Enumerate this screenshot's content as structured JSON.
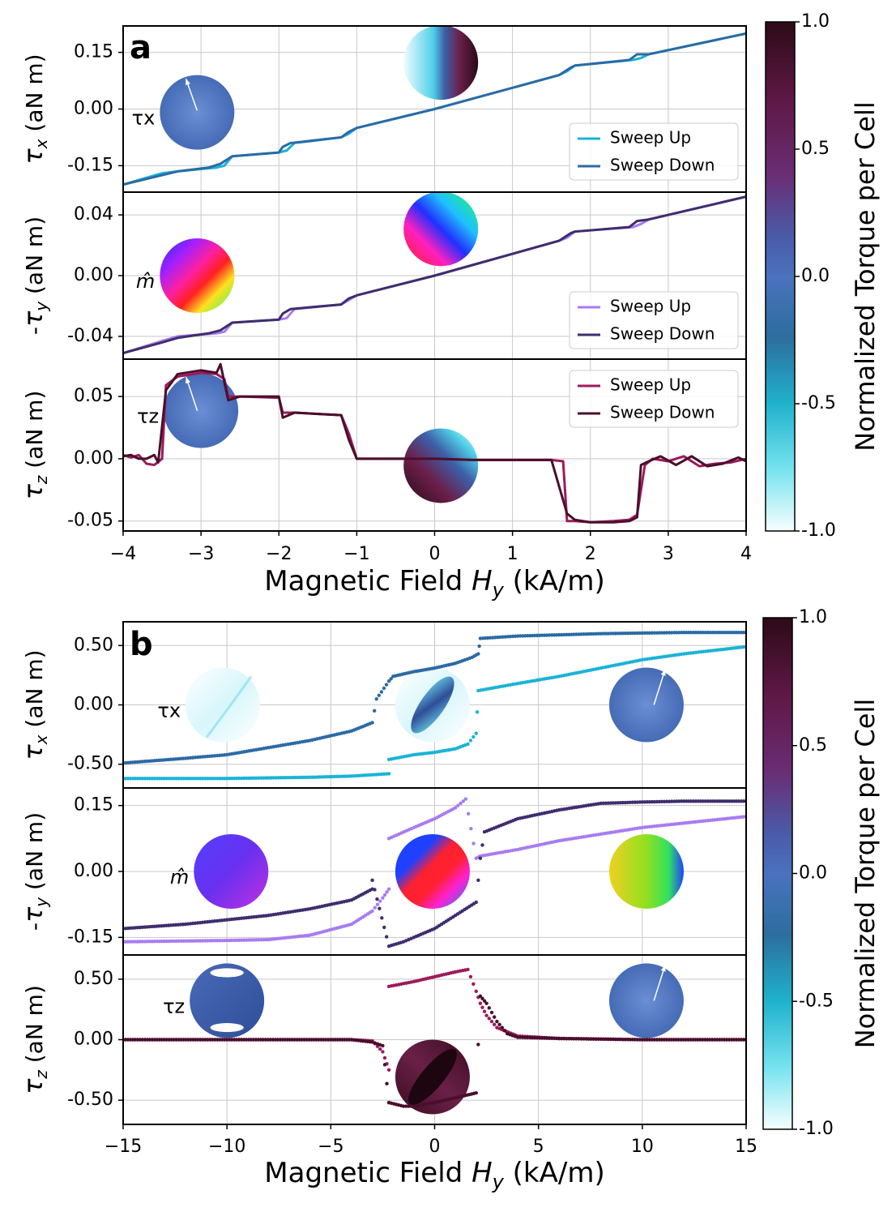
{
  "chart_data": [
    {
      "panel": "a",
      "type": "line",
      "xlabel_prefix": "Magnetic Field ",
      "xlabel_var": "H",
      "xlabel_sub": "y",
      "xlabel_unit": " (kA/m)",
      "xlim": [
        -4,
        4
      ],
      "xticks": [
        -4,
        -3,
        -2,
        -1,
        0,
        1,
        2,
        3,
        4
      ],
      "xtick_labels": [
        "−4",
        "−3",
        "−2",
        "−1",
        "0",
        "1",
        "2",
        "3",
        "4"
      ],
      "colorbar": {
        "label": "Normalized Torque per Cell",
        "ticks": [
          "1.0",
          "0.5",
          "0.0",
          "-0.5",
          "-1.0"
        ]
      },
      "subplots": [
        {
          "id": "tx",
          "ylabel_prefix": "",
          "ylabel_sym": "τ",
          "ylabel_sub": "x",
          "ylabel_unit": " (aN m)",
          "ylim": [
            -0.22,
            0.22
          ],
          "yticks": [
            0.15,
            0.0,
            -0.15
          ],
          "ytick_labels": [
            "0.15",
            "0.00",
            "-0.15"
          ],
          "inset_label": "τx",
          "series": [
            {
              "name": "Sweep Up",
              "color": "#1ab3d6",
              "x": [
                -4.0,
                -3.5,
                -3.3,
                -2.8,
                -2.7,
                -2.6,
                -2.0,
                -1.9,
                -1.8,
                -1.2,
                -1.1,
                -1.0,
                0.0,
                1.6,
                1.7,
                1.8,
                2.55,
                2.65,
                2.75,
                4.0
              ],
              "y": [
                -0.2,
                -0.17,
                -0.165,
                -0.155,
                -0.15,
                -0.125,
                -0.115,
                -0.11,
                -0.09,
                -0.075,
                -0.065,
                -0.05,
                0.0,
                0.09,
                0.1,
                0.115,
                0.13,
                0.135,
                0.145,
                0.2
              ]
            },
            {
              "name": "Sweep Down",
              "color": "#2b6aa5",
              "x": [
                -4.0,
                -3.5,
                -3.3,
                -2.9,
                -2.75,
                -2.6,
                -2.0,
                -1.95,
                -1.85,
                -1.2,
                -1.1,
                -1.0,
                0.0,
                1.6,
                1.75,
                1.8,
                2.5,
                2.6,
                2.75,
                4.0
              ],
              "y": [
                -0.2,
                -0.175,
                -0.165,
                -0.155,
                -0.145,
                -0.125,
                -0.115,
                -0.1,
                -0.09,
                -0.075,
                -0.06,
                -0.05,
                0.0,
                0.09,
                0.11,
                0.115,
                0.13,
                0.145,
                0.145,
                0.2
              ]
            }
          ]
        },
        {
          "id": "ty",
          "ylabel_prefix": "-",
          "ylabel_sym": "τ",
          "ylabel_sub": "y",
          "ylabel_unit": " (aN m)",
          "ylim": [
            -0.055,
            0.055
          ],
          "yticks": [
            0.04,
            0.0,
            -0.04
          ],
          "ytick_labels": [
            "0.04",
            "0.00",
            "-0.04"
          ],
          "inset_label": "m̂",
          "series": [
            {
              "name": "Sweep Up",
              "color": "#a77cf0",
              "x": [
                -4.0,
                -3.5,
                -3.3,
                -2.8,
                -2.7,
                -2.6,
                -2.0,
                -1.9,
                -1.8,
                -1.2,
                -1.1,
                -1.0,
                0.0,
                1.6,
                1.7,
                1.8,
                2.55,
                2.65,
                2.75,
                4.0
              ],
              "y": [
                -0.051,
                -0.043,
                -0.04,
                -0.038,
                -0.037,
                -0.031,
                -0.029,
                -0.028,
                -0.022,
                -0.019,
                -0.016,
                -0.013,
                0.0,
                0.023,
                0.025,
                0.029,
                0.032,
                0.034,
                0.037,
                0.052
              ]
            },
            {
              "name": "Sweep Down",
              "color": "#3f2d6e",
              "x": [
                -4.0,
                -3.5,
                -3.3,
                -2.9,
                -2.75,
                -2.6,
                -2.0,
                -1.95,
                -1.85,
                -1.2,
                -1.1,
                -1.0,
                0.0,
                1.6,
                1.75,
                1.8,
                2.5,
                2.6,
                2.75,
                4.0
              ],
              "y": [
                -0.051,
                -0.044,
                -0.041,
                -0.038,
                -0.036,
                -0.031,
                -0.029,
                -0.025,
                -0.022,
                -0.019,
                -0.015,
                -0.013,
                0.0,
                0.023,
                0.028,
                0.029,
                0.032,
                0.036,
                0.037,
                0.052
              ]
            }
          ]
        },
        {
          "id": "tz",
          "ylabel_prefix": "",
          "ylabel_sym": "τ",
          "ylabel_sub": "z",
          "ylabel_unit": " (aN m)",
          "ylim": [
            -0.058,
            0.08
          ],
          "yticks": [
            0.05,
            0.0,
            -0.05
          ],
          "ytick_labels": [
            "0.05",
            "0.00",
            "-0.05"
          ],
          "inset_label": "τz",
          "series": [
            {
              "name": "Sweep Up",
              "color": "#9c1b5a",
              "x": [
                -4.0,
                -3.9,
                -3.8,
                -3.7,
                -3.6,
                -3.5,
                -3.45,
                -3.3,
                -3.0,
                -2.8,
                -2.7,
                -2.65,
                -2.5,
                -2.0,
                -1.95,
                -1.8,
                -1.2,
                -1.1,
                -1.0,
                -0.5,
                0.0,
                0.5,
                1.0,
                1.5,
                1.65,
                1.7,
                1.8,
                2.0,
                2.3,
                2.5,
                2.6,
                2.7,
                2.8,
                3.0,
                3.2,
                3.4,
                3.6,
                3.8,
                4.0
              ],
              "y": [
                0.003,
                0.001,
                0.003,
                -0.004,
                -0.005,
                0.0,
                0.059,
                0.066,
                0.069,
                0.068,
                0.064,
                0.05,
                0.05,
                0.049,
                0.037,
                0.037,
                0.035,
                0.02,
                0.0,
                0.0,
                0.0,
                -0.001,
                -0.001,
                -0.001,
                -0.002,
                -0.05,
                -0.05,
                -0.051,
                -0.05,
                -0.049,
                -0.045,
                -0.005,
                0.0,
                -0.002,
                0.002,
                -0.006,
                -0.004,
                -0.003,
                0.0
              ]
            },
            {
              "name": "Sweep Down",
              "color": "#4a0f2c",
              "x": [
                -4.0,
                -3.9,
                -3.8,
                -3.7,
                -3.6,
                -3.55,
                -3.45,
                -3.3,
                -3.0,
                -2.8,
                -2.75,
                -2.65,
                -2.5,
                -2.0,
                -1.95,
                -1.8,
                -1.2,
                -1.1,
                -1.0,
                -0.5,
                0.0,
                0.5,
                1.0,
                1.5,
                1.7,
                1.8,
                2.0,
                2.3,
                2.5,
                2.6,
                2.65,
                2.75,
                2.9,
                3.1,
                3.3,
                3.5,
                3.7,
                3.9,
                4.0
              ],
              "y": [
                0.002,
                0.003,
                0.0,
                0.0,
                0.003,
                -0.003,
                0.055,
                0.068,
                0.071,
                0.069,
                0.076,
                0.047,
                0.05,
                0.05,
                0.033,
                0.037,
                0.035,
                0.015,
                0.0,
                0.0,
                0.0,
                -0.001,
                -0.001,
                -0.001,
                -0.044,
                -0.049,
                -0.051,
                -0.051,
                -0.05,
                -0.047,
                -0.005,
                -0.002,
                0.002,
                -0.005,
                0.002,
                -0.006,
                -0.004,
                0.001,
                -0.002
              ]
            }
          ]
        }
      ]
    },
    {
      "panel": "b",
      "type": "scatter",
      "xlabel_prefix": "Magnetic Field ",
      "xlabel_var": "H",
      "xlabel_sub": "y",
      "xlabel_unit": " (kA/m)",
      "xlim": [
        -15,
        15
      ],
      "xticks": [
        -15,
        -10,
        -5,
        0,
        5,
        10,
        15
      ],
      "xtick_labels": [
        "−15",
        "−10",
        "−5",
        "0",
        "5",
        "10",
        "15"
      ],
      "colorbar": {
        "label": "Normalized Torque per Cell",
        "ticks": [
          "1.0",
          "0.5",
          "0.0",
          "-0.5",
          "-1.0"
        ]
      },
      "subplots": [
        {
          "id": "tx",
          "ylabel_prefix": "",
          "ylabel_sym": "τ",
          "ylabel_sub": "x",
          "ylabel_unit": " (aN m)",
          "ylim": [
            -0.7,
            0.7
          ],
          "yticks": [
            0.5,
            0.0,
            -0.5
          ],
          "ytick_labels": [
            "0.50",
            "0.00",
            "-0.50"
          ],
          "inset_label": "τx",
          "series": [
            {
              "name": "Sweep Up",
              "color": "#1ab3d6",
              "x": [
                -15,
                -10,
                -6,
                -4,
                -2.2,
                -2.2,
                -1.0,
                0.0,
                1.0,
                1.6,
                2.0,
                2.1,
                4,
                6,
                8,
                10,
                12,
                14,
                15
              ],
              "y": [
                -0.62,
                -0.62,
                -0.61,
                -0.6,
                -0.58,
                -0.46,
                -0.42,
                -0.4,
                -0.37,
                -0.33,
                -0.24,
                0.12,
                0.18,
                0.24,
                0.31,
                0.38,
                0.43,
                0.47,
                0.49
              ]
            },
            {
              "name": "Sweep Down",
              "color": "#2b6aa5",
              "x": [
                -15,
                -12,
                -10,
                -8,
                -6,
                -4,
                -3,
                -2.8,
                -2.2,
                -2.0,
                -1.0,
                0.0,
                1.0,
                1.8,
                2.1,
                2.2,
                4,
                8,
                12,
                15
              ],
              "y": [
                -0.49,
                -0.45,
                -0.42,
                -0.36,
                -0.3,
                -0.22,
                -0.15,
                0.05,
                0.2,
                0.24,
                0.28,
                0.31,
                0.35,
                0.4,
                0.43,
                0.56,
                0.58,
                0.6,
                0.61,
                0.61
              ]
            }
          ]
        },
        {
          "id": "ty",
          "ylabel_prefix": "-",
          "ylabel_sym": "τ",
          "ylabel_sub": "y",
          "ylabel_unit": " (aN m)",
          "ylim": [
            -0.19,
            0.19
          ],
          "yticks": [
            0.15,
            0.0,
            -0.15
          ],
          "ytick_labels": [
            "0.15",
            "0.00",
            "-0.15"
          ],
          "inset_label": "m̂",
          "series": [
            {
              "name": "Sweep Up",
              "color": "#a77cf0",
              "x": [
                -15,
                -10,
                -8,
                -6,
                -4,
                -3,
                -2.5,
                -2.2,
                -2.2,
                -1.0,
                0.0,
                1.0,
                1.5,
                2.0,
                2.2,
                4,
                6,
                8,
                10,
                12,
                15
              ],
              "y": [
                -0.16,
                -0.157,
                -0.155,
                -0.145,
                -0.12,
                -0.09,
                -0.06,
                -0.04,
                0.075,
                0.1,
                0.12,
                0.145,
                0.165,
                0.03,
                0.035,
                0.05,
                0.07,
                0.085,
                0.1,
                0.11,
                0.125
              ]
            },
            {
              "name": "Sweep Down",
              "color": "#3f2d6e",
              "x": [
                -15,
                -12,
                -10,
                -8,
                -6,
                -4,
                -3,
                -3.0,
                -2.2,
                -1.5,
                -1.0,
                0.0,
                1.0,
                2.0,
                2.2,
                2.4,
                4,
                6,
                8,
                10,
                12,
                15
              ],
              "y": [
                -0.13,
                -0.12,
                -0.11,
                -0.1,
                -0.085,
                -0.065,
                -0.04,
                -0.02,
                -0.17,
                -0.16,
                -0.15,
                -0.13,
                -0.1,
                -0.07,
                0.03,
                0.09,
                0.12,
                0.14,
                0.155,
                0.158,
                0.16,
                0.16
              ]
            }
          ]
        },
        {
          "id": "tz",
          "ylabel_prefix": "",
          "ylabel_sym": "τ",
          "ylabel_sub": "z",
          "ylabel_unit": " (aN m)",
          "ylim": [
            -0.7,
            0.7
          ],
          "yticks": [
            0.5,
            0.0,
            -0.5
          ],
          "ytick_labels": [
            "0.50",
            "0.00",
            "-0.50"
          ],
          "inset_label": "τz",
          "series": [
            {
              "name": "Sweep Up",
              "color": "#9c1b5a",
              "x": [
                -15,
                -10,
                -5,
                -4,
                -3,
                -2.5,
                -2.2,
                -2.2,
                -1.0,
                0.0,
                1.0,
                1.6,
                2.0,
                2.2,
                2.5,
                3,
                4,
                6,
                10,
                15
              ],
              "y": [
                0.0,
                0.0,
                0.0,
                0.0,
                -0.01,
                -0.1,
                -0.25,
                0.44,
                0.48,
                0.52,
                0.56,
                0.58,
                0.4,
                0.3,
                0.2,
                0.1,
                0.03,
                0.01,
                0.0,
                0.0
              ]
            },
            {
              "name": "Sweep Down",
              "color": "#4a0f2c",
              "x": [
                -15,
                -10,
                -5,
                -4,
                -3,
                -2.5,
                -2.2,
                -2.2,
                -1.5,
                -1.0,
                0.0,
                1.0,
                2.0,
                2.2,
                2.5,
                3,
                3.5,
                4,
                6,
                10,
                15
              ],
              "y": [
                0.0,
                0.0,
                0.0,
                0.0,
                -0.02,
                -0.05,
                -0.52,
                -0.52,
                -0.55,
                -0.55,
                -0.52,
                -0.48,
                -0.44,
                0.36,
                0.3,
                0.15,
                0.05,
                0.02,
                0.01,
                0.0,
                0.0
              ]
            }
          ]
        }
      ]
    }
  ]
}
